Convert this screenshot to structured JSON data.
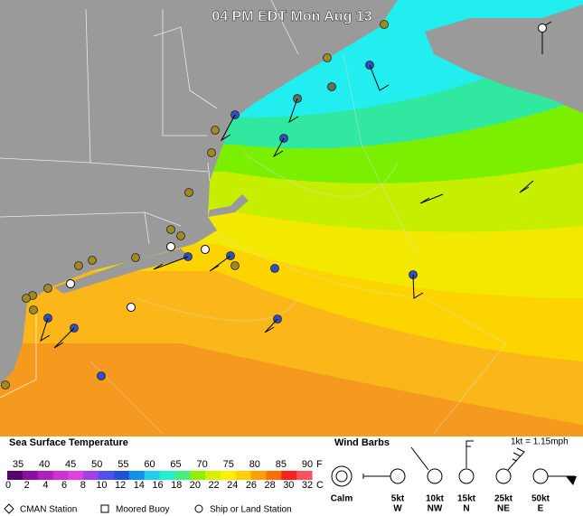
{
  "map": {
    "title": "04 PM EDT Mon Aug 13"
  },
  "legend": {
    "sst": {
      "title": "Sea Surface Temperature",
      "fahrenheit": [
        35,
        40,
        45,
        50,
        55,
        60,
        65,
        70,
        75,
        80,
        85,
        90
      ],
      "f_unit": "F",
      "celsius": [
        0,
        2,
        4,
        6,
        8,
        10,
        12,
        14,
        16,
        18,
        20,
        22,
        24,
        26,
        28,
        30,
        32
      ],
      "c_unit": "C"
    },
    "wind": {
      "title": "Wind Barbs",
      "conversion": "1kt = 1.15mph",
      "items": [
        {
          "speed": "Calm"
        },
        {
          "speed": "5kt",
          "direction": "W"
        },
        {
          "speed": "10kt",
          "direction": "NW"
        },
        {
          "speed": "15kt",
          "direction": "N"
        },
        {
          "speed": "25kt",
          "direction": "NE"
        },
        {
          "speed": "50kt",
          "direction": "E"
        }
      ]
    },
    "stations": [
      "CMAN Station",
      "Moored Buoy",
      "Ship or Land Station"
    ]
  }
}
